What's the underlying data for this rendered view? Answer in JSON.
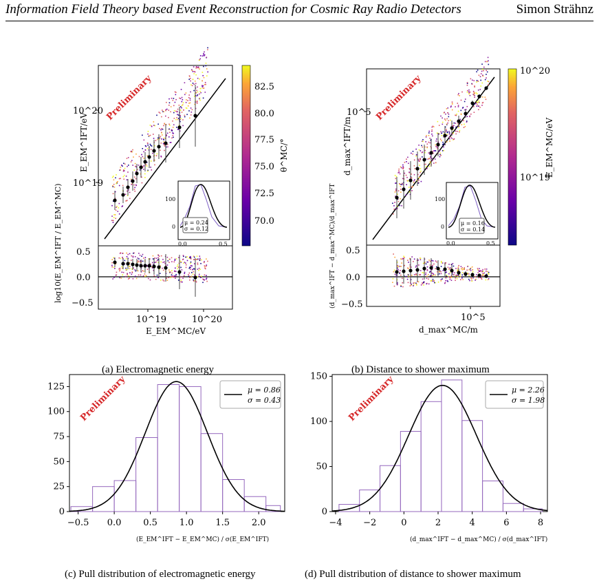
{
  "header": {
    "title": "Information Field Theory based Event Reconstruction for Cosmic Ray Radio Detectors",
    "author": "Simon Strähnz"
  },
  "watermark": "Preliminary",
  "captions": {
    "a": "(a) Electromagnetic energy",
    "b": "(b) Distance to shower maximum",
    "c": "(c) Pull distribution of electromagnetic energy",
    "d": "(d) Pull distribution of distance to shower maximum"
  },
  "panel_a": {
    "ylabel": "E_EM^IFT/eV",
    "xlabel": "E_EM^MC/eV",
    "resid_label": "log10(E_EM^IFT / E_EM^MC)",
    "colorbar_label": "θ^MC/°",
    "yticks": [
      "10^20",
      "10^19"
    ],
    "xticks": [
      "10^19",
      "10^20"
    ],
    "resid_ticks": [
      "0.5",
      "0.0",
      "−0.5"
    ],
    "colorbar_ticks": [
      "82.5",
      "80.0",
      "77.5",
      "75.0",
      "72.5",
      "70.0"
    ],
    "inset_yticks": [
      "100",
      "0"
    ],
    "inset_xticks": [
      "0.0",
      "0.5"
    ],
    "inset_mu": "μ = 0.24",
    "inset_sigma": "σ = 0.12"
  },
  "panel_b": {
    "ylabel": "d_max^IFT/m",
    "xlabel": "d_max^MC/m",
    "resid_label": "(d_max^IFT − d_max^MC)/d_max^IFT",
    "colorbar_label": "E_EM^MC/eV",
    "yticks": [
      "10^5"
    ],
    "xticks": [
      "10^5"
    ],
    "resid_ticks": [
      "0.5",
      "0.0",
      "−0.5"
    ],
    "colorbar_ticks": [
      "10^20",
      "10^19"
    ],
    "inset_yticks": [
      "100",
      "0"
    ],
    "inset_xticks": [
      "0.0",
      "0.5"
    ],
    "inset_mu": "μ = 0.16",
    "inset_sigma": "σ = 0.14"
  },
  "chart_data": [
    {
      "type": "bar",
      "panel": "c",
      "xlabel": "(E_EM^IFT − E_EM^MC) / σ(E_EM^IFT)",
      "ylabel": "",
      "xlim": [
        -0.62,
        2.36
      ],
      "ylim": [
        0,
        137
      ],
      "xticks": [
        "−0.5",
        "0.0",
        "0.5",
        "1.0",
        "1.5",
        "2.0"
      ],
      "yticks": [
        "0",
        "25",
        "50",
        "75",
        "100",
        "125"
      ],
      "bin_edges": [
        -0.6,
        -0.3,
        0.0,
        0.3,
        0.6,
        0.9,
        1.2,
        1.5,
        1.8,
        2.1,
        2.3
      ],
      "counts": [
        5,
        25,
        31,
        74,
        127,
        125,
        78,
        32,
        15,
        6
      ],
      "fit": {
        "mu": 0.86,
        "sigma": 0.43,
        "amplitude": 130
      },
      "legend": [
        "μ = 0.86",
        "σ = 0.43"
      ]
    },
    {
      "type": "bar",
      "panel": "d",
      "xlabel": "(d_max^IFT − d_max^MC) / σ(d_max^IFT)",
      "ylabel": "",
      "xlim": [
        -4.2,
        8.4
      ],
      "ylim": [
        0,
        152
      ],
      "xticks": [
        "−4",
        "−2",
        "0",
        "2",
        "4",
        "6",
        "8"
      ],
      "yticks": [
        "0",
        "50",
        "100",
        "150"
      ],
      "bin_edges": [
        -3.8,
        -2.6,
        -1.4,
        -0.2,
        1.0,
        2.2,
        3.4,
        4.6,
        5.8,
        7.0,
        8.1
      ],
      "counts": [
        8,
        24,
        51,
        89,
        122,
        146,
        101,
        34,
        9,
        3
      ],
      "fit": {
        "mu": 2.26,
        "sigma": 1.98,
        "amplitude": 140
      },
      "legend": [
        "μ = 2.26",
        "σ = 1.98"
      ]
    }
  ]
}
